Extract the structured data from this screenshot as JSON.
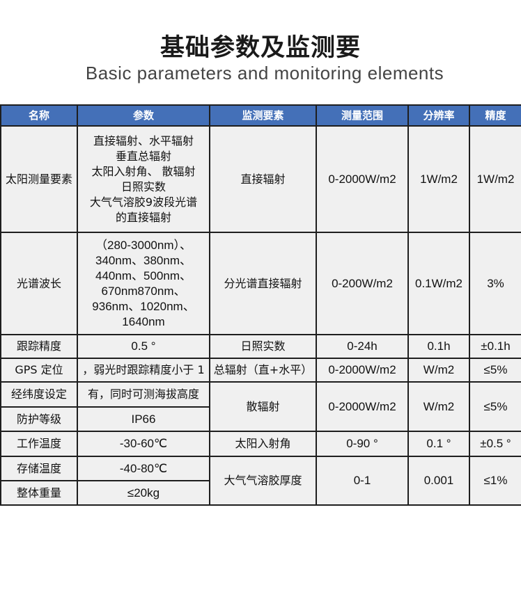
{
  "title": "基础参数及监测要",
  "subtitle": "Basic parameters and monitoring elements",
  "colors": {
    "header_bg": "#4470b8",
    "cell_bg": "#f0f0f0",
    "border": "#1e1e1e"
  },
  "table": {
    "headers": [
      "名称",
      "参数",
      "监测要素",
      "测量范围",
      "分辨率",
      "精度"
    ],
    "left_rows": [
      {
        "name": "太阳测量要素",
        "param_lines": [
          "直接辐射、水平辐射",
          "垂直总辐射",
          "太阳入射角、 散辐射",
          "日照实数",
          "大气气溶胶9波段光谱",
          "的直接辐射"
        ]
      },
      {
        "name": "光谱波长",
        "param_lines": [
          "（280-3000nm）、",
          "340nm、380nm、",
          "440nm、500nm、",
          "670nm870nm、",
          "936nm、1020nm、",
          "1640nm"
        ]
      },
      {
        "name": "跟踪精度",
        "param": "0.5 °"
      },
      {
        "name": "GPS 定位",
        "param": "，弱光时跟踪精度小于 1"
      },
      {
        "name": "经纬度设定",
        "param": "有，同时可测海拔高度"
      },
      {
        "name": "防护等级",
        "param": "IP66"
      },
      {
        "name": "工作温度",
        "param": "-30-60℃"
      },
      {
        "name": "存储温度",
        "param": "-40-80℃"
      },
      {
        "name": "整体重量",
        "param": "≤20kg"
      }
    ],
    "right_rows": [
      {
        "element": "直接辐射",
        "range": "0-2000W/m2",
        "resolution": "1W/m2",
        "accuracy": "1W/m2"
      },
      {
        "element": "分光谱直接辐射",
        "range": "0-200W/m2",
        "resolution": "0.1W/m2",
        "accuracy": "3%"
      },
      {
        "element": "日照实数",
        "range": "0-24h",
        "resolution": "0.1h",
        "accuracy": "±0.1h"
      },
      {
        "element": "总辐射（直+水平）",
        "range": "0-2000W/m2",
        "resolution": "W/m2",
        "accuracy": "≤5%"
      },
      {
        "element": "散辐射",
        "range": "0-2000W/m2",
        "resolution": "W/m2",
        "accuracy": "≤5%"
      },
      {
        "element": "太阳入射角",
        "range": "0-90 °",
        "resolution": "0.1 °",
        "accuracy": "±0.5 °"
      },
      {
        "element": "大气气溶胶厚度",
        "range": "0-1",
        "resolution": "0.001",
        "accuracy": "≤1%"
      }
    ]
  }
}
